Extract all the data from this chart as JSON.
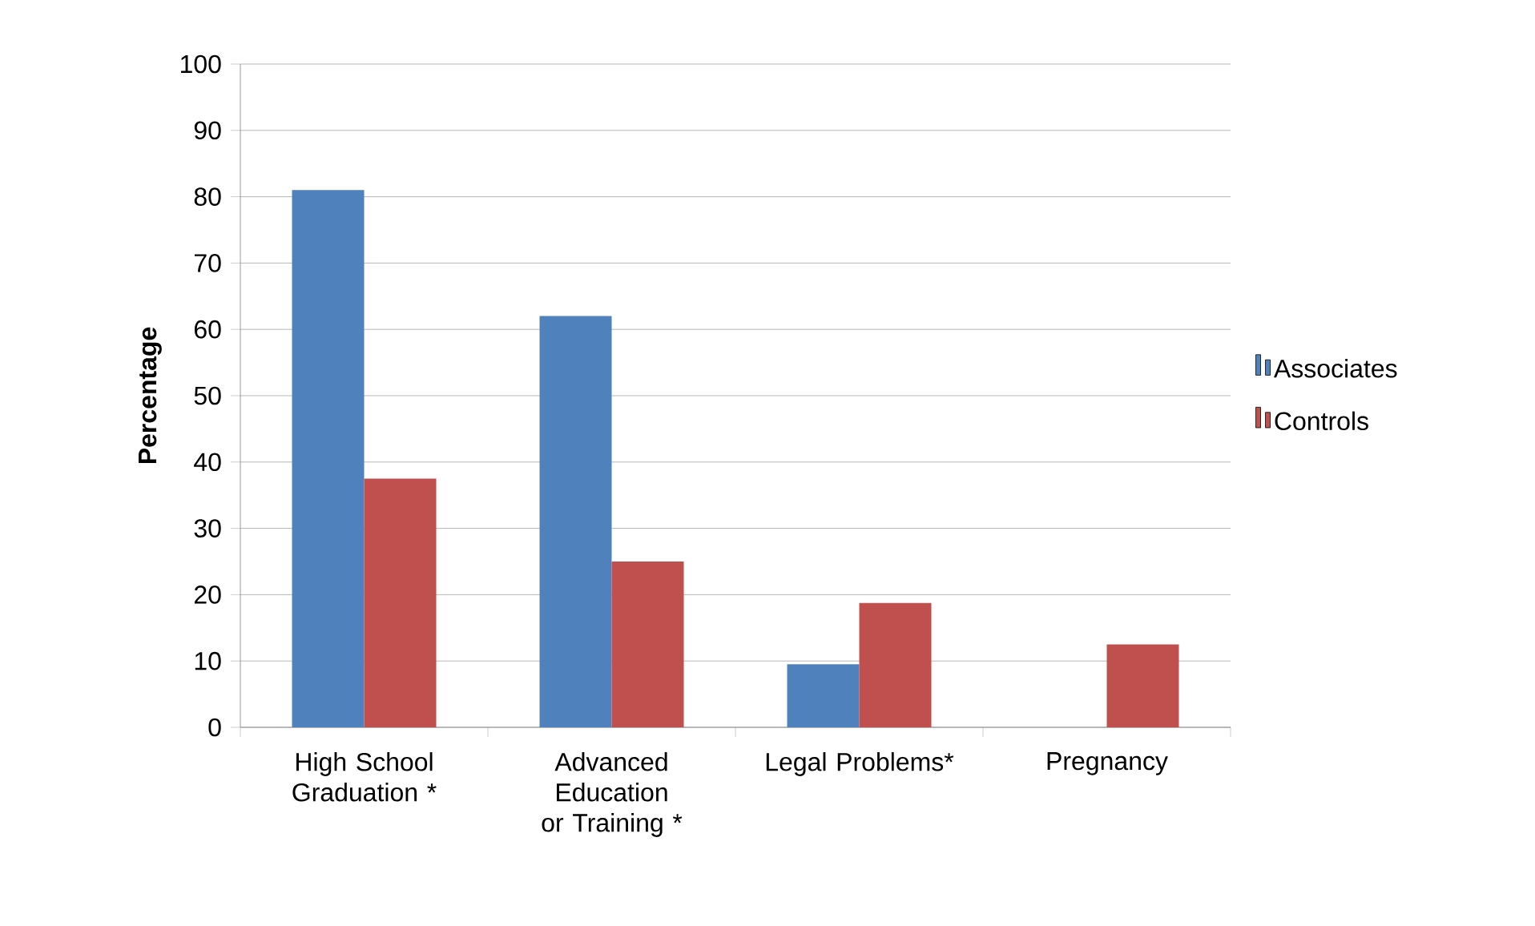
{
  "chart_data": {
    "type": "bar",
    "ylabel": "Percentage",
    "categories": [
      "High School Graduation *",
      "Advanced Education or Training *",
      "Legal Problems*",
      "Pregnancy"
    ],
    "series": [
      {
        "name": "Associates",
        "color": "#4f81bd",
        "values": [
          81,
          62,
          9.5,
          0
        ]
      },
      {
        "name": "Controls",
        "color": "#c0504d",
        "values": [
          37.5,
          25,
          18.75,
          12.5
        ]
      }
    ],
    "ylim": [
      0,
      100
    ],
    "yticks": [
      0,
      10,
      20,
      30,
      40,
      50,
      60,
      70,
      80,
      90,
      100
    ],
    "grid": "y",
    "legend": "right"
  }
}
